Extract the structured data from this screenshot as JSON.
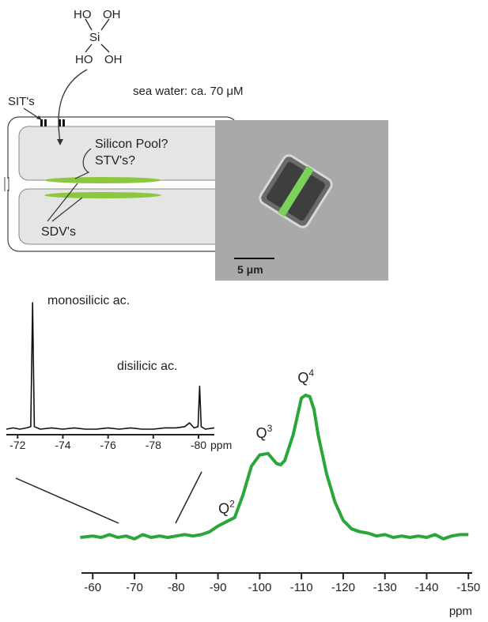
{
  "diagram": {
    "silicic_acid": [
      "HO",
      "OH",
      "Si",
      "HO",
      "OH"
    ],
    "transporter_label": "SIT's",
    "sea_water": "sea water: ca. 70 μM",
    "pool_label": "Silicon Pool?",
    "stv_label": "STV's?",
    "sdv_label": "SDV's"
  },
  "micrograph": {
    "scale_bar": "5 μm"
  },
  "chart_data": [
    {
      "type": "line",
      "color": "#2aa63a",
      "x": [
        -57,
        -60,
        -62,
        -64,
        -66,
        -68,
        -70,
        -72,
        -74,
        -76,
        -78,
        -80,
        -82,
        -84,
        -86,
        -88,
        -90,
        -92,
        -94,
        -96,
        -98,
        -100,
        -102,
        -104,
        -105,
        -106,
        -108,
        -110,
        -111,
        -112,
        -113,
        -114,
        -116,
        -118,
        -120,
        -122,
        -124,
        -126,
        -128,
        -130,
        -132,
        -134,
        -136,
        -138,
        -140,
        -142,
        -144,
        -146,
        -148,
        -150
      ],
      "values": [
        0,
        1,
        0,
        2,
        0,
        1,
        -1,
        2,
        0,
        1,
        0,
        1,
        2,
        1,
        2,
        4,
        8,
        11,
        14,
        30,
        50,
        58,
        59,
        52,
        51,
        54,
        72,
        98,
        100,
        99,
        90,
        72,
        45,
        25,
        12,
        6,
        4,
        3,
        1,
        2,
        0,
        1,
        0,
        1,
        0,
        2,
        -1,
        1,
        2,
        2
      ],
      "xlim": [
        -57.3,
        -150.9
      ],
      "xticks": [
        -60,
        -70,
        -80,
        -90,
        -100,
        -110,
        -120,
        -130,
        -140,
        -150
      ],
      "xlabel": "ppm",
      "annotations": [
        {
          "text": "Q",
          "sup": "2",
          "x": -92,
          "y": 17
        },
        {
          "text": "Q",
          "sup": "3",
          "x": -101,
          "y": 70
        },
        {
          "text": "Q",
          "sup": "4",
          "x": -111,
          "y": 109
        }
      ]
    },
    {
      "type": "line",
      "color": "#111",
      "x": [
        -71.5,
        -71.8,
        -72.1,
        -72.4,
        -72.58,
        -72.66,
        -72.74,
        -73,
        -73.5,
        -74,
        -74.5,
        -75,
        -75.5,
        -76,
        -76.5,
        -77,
        -77.5,
        -78,
        -78.5,
        -79,
        -79.4,
        -79.6,
        -79.8,
        -79.98,
        -80.05,
        -80.12,
        -80.3,
        -80.7
      ],
      "values": [
        0,
        1,
        0,
        1,
        2,
        100,
        2,
        0,
        1,
        0,
        1,
        0,
        0,
        1,
        0,
        1,
        0,
        0,
        1,
        1,
        2,
        5,
        1,
        2,
        34,
        2,
        0,
        1
      ],
      "xlim": [
        -71.5,
        -80.7
      ],
      "xticks": [
        -72,
        -74,
        -76,
        -78,
        -80
      ],
      "xlabel": "ppm",
      "peak_labels": [
        "monosilicic ac.",
        "disilicic ac."
      ]
    }
  ]
}
